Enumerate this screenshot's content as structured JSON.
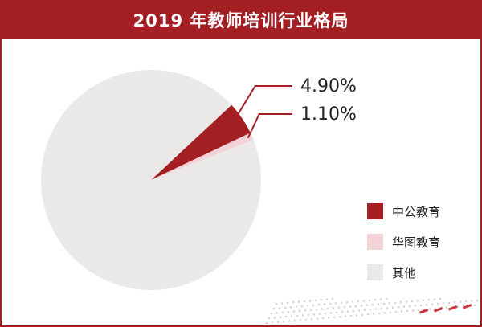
{
  "colors": {
    "accent": "#a31f24",
    "slice_zhonggong": "#a31f24",
    "slice_huatu": "#f2d2d5",
    "slice_other": "#ebe8e8"
  },
  "chart_data": {
    "type": "pie",
    "title": "2019 年教师培训行业格局",
    "labels": [
      "中公教育",
      "华图教育",
      "其他"
    ],
    "values": [
      4.9,
      1.1,
      94.0
    ],
    "data_labels": [
      "4.90%",
      "1.10%",
      ""
    ],
    "legend": [
      "中公教育",
      "华图教育",
      "其他"
    ],
    "legend_position": "bottom-right"
  }
}
